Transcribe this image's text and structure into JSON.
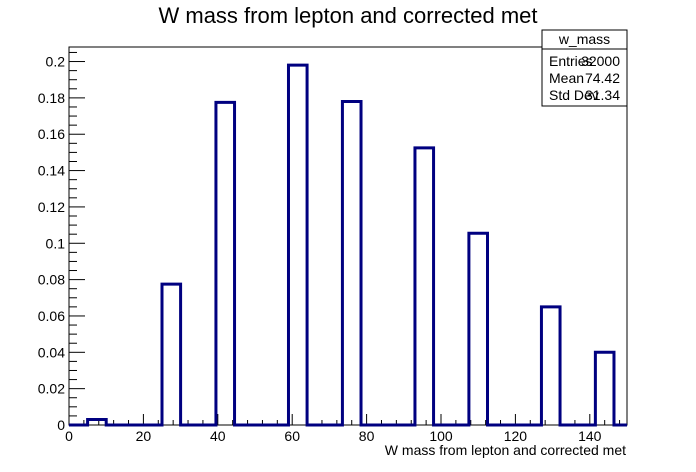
{
  "chart_data": {
    "type": "histogram",
    "title": "W mass from lepton and corrected met",
    "xlabel": "W mass from lepton and corrected met",
    "ylabel": "",
    "xlim": [
      0,
      150
    ],
    "ylim": [
      0,
      0.208
    ],
    "x_ticks": [
      0,
      20,
      40,
      60,
      80,
      100,
      120,
      140
    ],
    "y_ticks": [
      0,
      0.02,
      0.04,
      0.06,
      0.08,
      0.1,
      0.12,
      0.14,
      0.16,
      0.18,
      0.2
    ],
    "x_tick_labels": [
      "0",
      "20",
      "40",
      "60",
      "80",
      "100",
      "120",
      "140"
    ],
    "y_tick_labels": [
      "0",
      "0.02",
      "0.04",
      "0.06",
      "0.08",
      "0.1",
      "0.12",
      "0.14",
      "0.16",
      "0.18",
      "0.2"
    ],
    "bins": [
      {
        "x0": 0,
        "x1": 5,
        "value": 0
      },
      {
        "x0": 5,
        "x1": 10,
        "value": 0.003
      },
      {
        "x0": 10,
        "x1": 25,
        "value": 0
      },
      {
        "x0": 25,
        "x1": 30,
        "value": 0.0775
      },
      {
        "x0": 30,
        "x1": 39.5,
        "value": 0
      },
      {
        "x0": 39.5,
        "x1": 44.5,
        "value": 0.1775
      },
      {
        "x0": 44.5,
        "x1": 59,
        "value": 0
      },
      {
        "x0": 59,
        "x1": 64,
        "value": 0.198
      },
      {
        "x0": 64,
        "x1": 73.5,
        "value": 0
      },
      {
        "x0": 73.5,
        "x1": 78.5,
        "value": 0.178
      },
      {
        "x0": 78.5,
        "x1": 93,
        "value": 0
      },
      {
        "x0": 93,
        "x1": 98,
        "value": 0.1525
      },
      {
        "x0": 98,
        "x1": 107.5,
        "value": 0
      },
      {
        "x0": 107.5,
        "x1": 112.5,
        "value": 0.1055
      },
      {
        "x0": 112.5,
        "x1": 127,
        "value": 0
      },
      {
        "x0": 127,
        "x1": 132,
        "value": 0.065
      },
      {
        "x0": 132,
        "x1": 141.5,
        "value": 0
      },
      {
        "x0": 141.5,
        "x1": 146.5,
        "value": 0.04
      },
      {
        "x0": 146.5,
        "x1": 150,
        "value": 0
      }
    ],
    "line_color": "#000080",
    "stats_box": {
      "name": "w_mass",
      "rows": [
        {
          "label": "Entries",
          "value": "32000"
        },
        {
          "label": "Mean",
          "value": "74.42"
        },
        {
          "label": "Std Dev",
          "value": "31.34"
        }
      ]
    },
    "grid": false,
    "legend": "top-right stats box"
  }
}
